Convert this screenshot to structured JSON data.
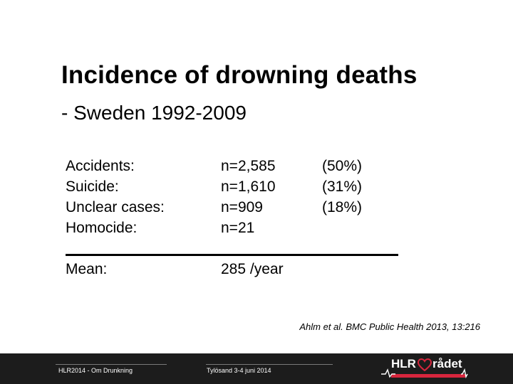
{
  "slide": {
    "title": "Incidence of drowning deaths",
    "subtitle": "- Sweden 1992-2009"
  },
  "stats": {
    "rows": [
      {
        "label": "Accidents:",
        "count": "n=2,585",
        "percent": "(50%)"
      },
      {
        "label": "Suicide:",
        "count": "n=1,610",
        "percent": "(31%)"
      },
      {
        "label": "Unclear cases:",
        "count": "n=909",
        "percent": "(18%)"
      },
      {
        "label": "Homocide:",
        "count": "n=21",
        "percent": ""
      }
    ],
    "mean_label": "Mean:",
    "mean_value": "285 /year"
  },
  "citation": "Ahlm et al. BMC Public Health 2013, 13:216",
  "footer": {
    "left_text": "HLR2014 - Om Drunkning",
    "center_text": "Tylösand 3-4 juni 2014",
    "logo_left": "HLR",
    "logo_right": "rådet",
    "colors": {
      "background": "#1c1c1c",
      "accent": "#d7263d"
    }
  }
}
